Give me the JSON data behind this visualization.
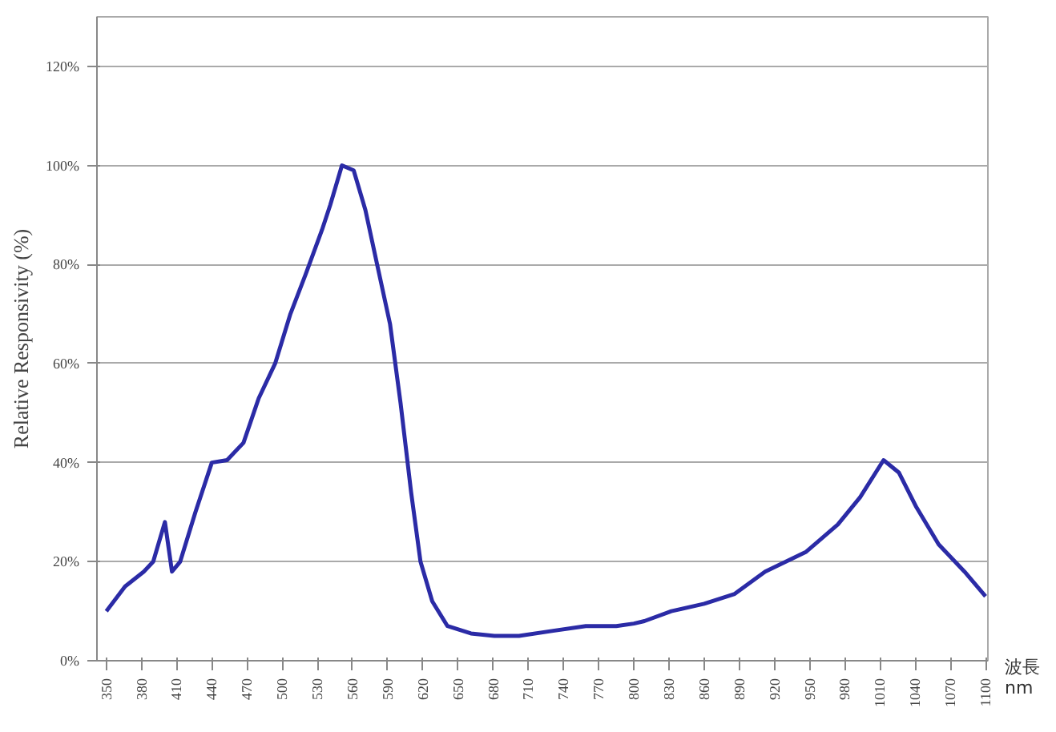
{
  "chart_data": {
    "type": "line",
    "xlabel": "波長 nm",
    "ylabel": "Relative Responsivity (%)",
    "xlim": [
      342,
      1102
    ],
    "ylim": [
      0,
      130
    ],
    "xticks": [
      350,
      380,
      410,
      440,
      470,
      500,
      530,
      560,
      590,
      620,
      650,
      680,
      710,
      740,
      770,
      800,
      830,
      860,
      890,
      920,
      950,
      980,
      1010,
      1040,
      1070,
      1100
    ],
    "yticks": [
      {
        "value": 0,
        "label": "0%"
      },
      {
        "value": 20,
        "label": "20%"
      },
      {
        "value": 40,
        "label": "40%"
      },
      {
        "value": 60,
        "label": "60%"
      },
      {
        "value": 80,
        "label": "80%"
      },
      {
        "value": 100,
        "label": "100%"
      },
      {
        "value": 120,
        "label": "120%"
      }
    ],
    "grid": "y",
    "marker": "none",
    "line_style": "solid",
    "series": [
      {
        "color": "#2b2ba6",
        "x": [
          350,
          366,
          382,
          390,
          400,
          406,
          413,
          426,
          440,
          453,
          467,
          480,
          494,
          507,
          520,
          534,
          541,
          551,
          561,
          571,
          581,
          592,
          601,
          610,
          618,
          628,
          641,
          661,
          681,
          702,
          730,
          759,
          785,
          800,
          809,
          832,
          860,
          886,
          912,
          947,
          974,
          993,
          1013,
          1026,
          1041,
          1060,
          1082,
          1100
        ],
        "values": [
          10,
          15,
          18,
          20,
          28,
          18,
          20,
          30,
          40,
          40.5,
          44,
          53,
          60,
          70,
          78,
          87,
          92,
          100,
          99,
          91,
          80,
          68,
          52,
          34,
          20,
          12,
          7,
          5.5,
          5,
          5,
          6,
          7,
          7,
          7.5,
          8,
          10,
          11.5,
          13.5,
          18,
          22,
          27.5,
          33,
          40.5,
          38,
          31,
          23.5,
          18,
          13
        ]
      }
    ]
  }
}
